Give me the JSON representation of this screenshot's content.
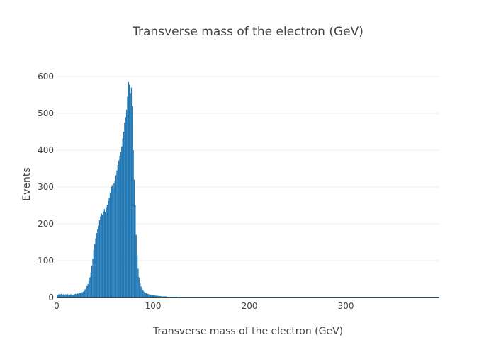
{
  "chart_data": {
    "type": "bar",
    "title": "Transverse mass of the electron (GeV)",
    "xlabel": "Transverse mass of the electron (GeV)",
    "ylabel": "Events",
    "xlim": [
      0,
      397
    ],
    "ylim": [
      0,
      600
    ],
    "x_ticks": [
      0,
      100,
      200,
      300
    ],
    "y_ticks": [
      0,
      100,
      200,
      300,
      400,
      500,
      600
    ],
    "bin_width": 1,
    "x_start": 0,
    "grid": true,
    "bar_color": "#1f77b4",
    "values": [
      7,
      8,
      9,
      8,
      10,
      9,
      8,
      9,
      7,
      9,
      8,
      9,
      7,
      8,
      9,
      8,
      7,
      8,
      9,
      10,
      9,
      11,
      10,
      12,
      12,
      14,
      14,
      16,
      18,
      22,
      25,
      31,
      37,
      45,
      55,
      68,
      86,
      105,
      130,
      145,
      160,
      175,
      185,
      195,
      210,
      220,
      228,
      225,
      233,
      240,
      232,
      245,
      252,
      262,
      270,
      285,
      300,
      305,
      295,
      310,
      318,
      332,
      345,
      360,
      372,
      385,
      395,
      410,
      432,
      450,
      475,
      490,
      510,
      545,
      585,
      578,
      555,
      570,
      520,
      400,
      320,
      250,
      170,
      115,
      78,
      55,
      40,
      30,
      24,
      20,
      16,
      14,
      12,
      11,
      10,
      9,
      8,
      8,
      7,
      7,
      6,
      6,
      5,
      5,
      5,
      4,
      4,
      4,
      3,
      3,
      3,
      3,
      3,
      3,
      2,
      2,
      2,
      2,
      2,
      2,
      2,
      2,
      2,
      2,
      2,
      1,
      1,
      1,
      1,
      1,
      1,
      1,
      1,
      1,
      1,
      1,
      1,
      1,
      1,
      1,
      1,
      1,
      1,
      1,
      1,
      1,
      1,
      1,
      1,
      1,
      1,
      1,
      1,
      1,
      1,
      1,
      1,
      1,
      1,
      1,
      1,
      1,
      1,
      1,
      1,
      1,
      1,
      1,
      1,
      1,
      1,
      1,
      1,
      1,
      1,
      1,
      1,
      1,
      1,
      1,
      1,
      1,
      1,
      1,
      1,
      1,
      1,
      1,
      1,
      1,
      1,
      1,
      1,
      1,
      1,
      1,
      1,
      1,
      1,
      1,
      1,
      1,
      1,
      1,
      1,
      1,
      1,
      1,
      1,
      1,
      1,
      1,
      1,
      1,
      1,
      1,
      1,
      1,
      1,
      1,
      1,
      1,
      1,
      1,
      1,
      1,
      1,
      1,
      1,
      1,
      1,
      1,
      1,
      1,
      1,
      1,
      1,
      1,
      1,
      1,
      1,
      1,
      1,
      1,
      1,
      1,
      1,
      1,
      1,
      1,
      1,
      1,
      1,
      1,
      1,
      1,
      1,
      1,
      1,
      1,
      1,
      1,
      1,
      1,
      1,
      1,
      1,
      1,
      1,
      1,
      1,
      1,
      1,
      1,
      1,
      1,
      1,
      1,
      1,
      1,
      1,
      1,
      1,
      1,
      1,
      1,
      1,
      1,
      1,
      1,
      1,
      1,
      1,
      1,
      1,
      1,
      1,
      1,
      1,
      1,
      1,
      1,
      1,
      1,
      1,
      1,
      1,
      1,
      1,
      1,
      1,
      1,
      1,
      1,
      1,
      1,
      1,
      1,
      1,
      1,
      1,
      1,
      1,
      1,
      1,
      1,
      1,
      1,
      1,
      1,
      1,
      1,
      1,
      1,
      1,
      1,
      1,
      1,
      1,
      1,
      1,
      1,
      1,
      1,
      1,
      1,
      1,
      1,
      1,
      1,
      1,
      1,
      1,
      1,
      1,
      1,
      1,
      1,
      1,
      1,
      1,
      1,
      1,
      1,
      1,
      1,
      1,
      1,
      1,
      1,
      1,
      1,
      1,
      1,
      1,
      1,
      1,
      1,
      1,
      1,
      1,
      1,
      1,
      1,
      1,
      1,
      1,
      1,
      1,
      1,
      1,
      1,
      1,
      1,
      1,
      1,
      1
    ]
  }
}
